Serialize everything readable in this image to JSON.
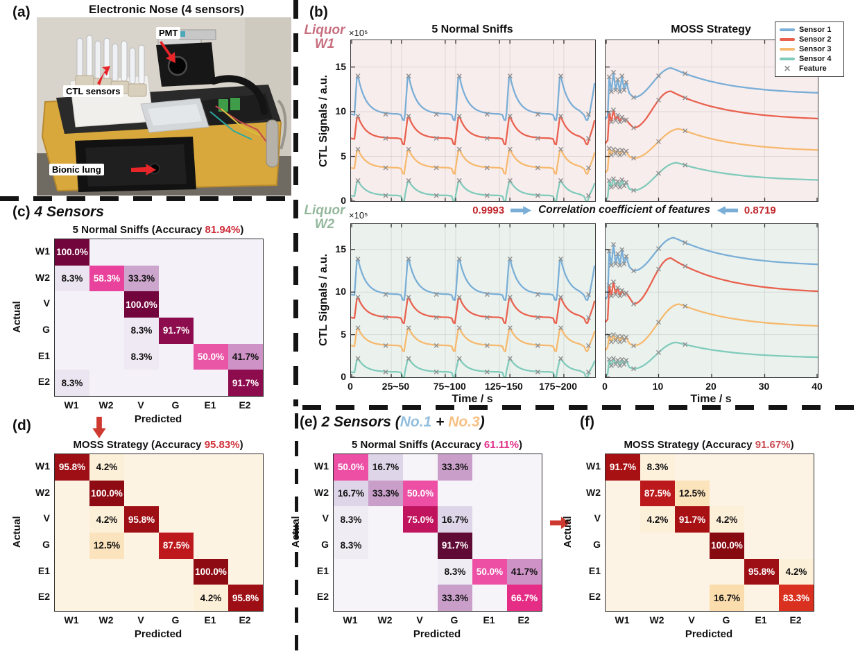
{
  "colors": {
    "sensor1": "#7aaed6",
    "sensor2": "#e9614e",
    "sensor3": "#f6b96e",
    "sensor4": "#80cbbb",
    "feature_marker": "#8f8f8f",
    "w1_bg": "#f8eded",
    "w2_bg": "#ebf2ee",
    "w1_label": "#c76e7e",
    "w2_label": "#95b89d",
    "corr_value": "#c1272d",
    "corr_arrow": "#7aaed6",
    "red_arrow": "#cf3a30",
    "axis": "#3c3c3c"
  },
  "panel_a": {
    "label": "(a)",
    "title": "Electronic Nose (4 sensors)",
    "annotations": {
      "pmt": "PMT",
      "ctl": "CTL sensors",
      "lung": "Bionic lung"
    }
  },
  "panel_b": {
    "label": "(b)",
    "w1_line1": "Liquor",
    "w1_line2": "W1",
    "w2_line1": "Liquor",
    "w2_line2": "W2",
    "y_multiplier": "×10⁵",
    "ylabel": "CTL Signals / a.u.",
    "xlabel": "Time / s",
    "title_left": "5 Normal Sniffs",
    "title_right": "MOSS Strategy",
    "correlation": {
      "left_value": "0.9993",
      "label": "Correlation coefficient of features",
      "right_value": "0.8719"
    }
  },
  "legend": {
    "items": [
      {
        "label": "Sensor 1",
        "color": "#7aaed6",
        "type": "line"
      },
      {
        "label": "Sensor 2",
        "color": "#e9614e",
        "type": "line"
      },
      {
        "label": "Sensor 3",
        "color": "#f6b96e",
        "type": "line"
      },
      {
        "label": "Sensor 4",
        "color": "#80cbbb",
        "type": "line"
      },
      {
        "label": "Feature",
        "color": "#8f8f8f",
        "type": "marker"
      }
    ]
  },
  "headings": {
    "c": {
      "label": "(c)",
      "segments": [
        {
          "t": " 4 Sensors",
          "c": "#111111"
        }
      ]
    },
    "d": {
      "label": "(d)",
      "segments": []
    },
    "e": {
      "label": "(e)",
      "segments": [
        {
          "t": " 2 Sensors (",
          "c": "#111111"
        },
        {
          "t": "No.1",
          "c": "#92bede"
        },
        {
          "t": " + ",
          "c": "#111111"
        },
        {
          "t": "No.3",
          "c": "#f7c083"
        },
        {
          "t": ")",
          "c": "#111111"
        }
      ]
    },
    "f": {
      "label": "(f)",
      "segments": []
    }
  },
  "chart_data": [
    {
      "id": "w1_sniffs",
      "type": "line",
      "kind": "sniff",
      "group": "Liquor W1",
      "title": "5 Normal Sniffs",
      "bg": "#f8eded",
      "ylabel": "CTL Signals / a.u.",
      "yunit": "×10⁵",
      "ylim": [
        0,
        18
      ],
      "yticks": [
        0,
        5,
        10,
        15
      ],
      "n_sniffs": 5,
      "series": [
        {
          "name": "Sensor 1",
          "color": "#7aaed6",
          "baseline": 9.6,
          "peak": 14.0
        },
        {
          "name": "Sensor 2",
          "color": "#e9614e",
          "baseline": 6.9,
          "peak": 9.5
        },
        {
          "name": "Sensor 3",
          "color": "#f6b96e",
          "baseline": 3.6,
          "peak": 5.8
        },
        {
          "name": "Sensor 4",
          "color": "#80cbbb",
          "baseline": 0.5,
          "peak": 2.3
        }
      ]
    },
    {
      "id": "w1_moss",
      "type": "line",
      "kind": "moss",
      "group": "Liquor W1",
      "title": "MOSS Strategy",
      "bg": "#f8eded",
      "ylim": [
        0,
        18
      ],
      "series": [
        {
          "name": "Sensor 1",
          "color": "#7aaed6",
          "baseline": 9.6,
          "spike_peaks": [
            13.9,
            14.4,
            13.6,
            14.0,
            13.3
          ],
          "spike_low": 12.3,
          "dip": 11.6,
          "hump_peak": 14.9,
          "hump_time": 12.5,
          "end": 11.9
        },
        {
          "name": "Sensor 2",
          "color": "#e9614e",
          "baseline": 6.9,
          "spike_peaks": [
            9.9,
            10.2,
            9.6,
            9.4,
            9.1
          ],
          "spike_low": 8.9,
          "dip": 8.2,
          "hump_peak": 12.3,
          "hump_time": 12.3,
          "end": 9.0
        },
        {
          "name": "Sensor 3",
          "color": "#f6b96e",
          "baseline": 3.6,
          "spike_peaks": [
            5.9,
            5.8,
            5.7,
            5.7,
            5.6
          ],
          "spike_low": 5.2,
          "dip": 4.8,
          "hump_peak": 8.1,
          "hump_time": 14.0,
          "end": 5.5
        },
        {
          "name": "Sensor 4",
          "color": "#80cbbb",
          "baseline": 0.5,
          "spike_peaks": [
            2.3,
            2.5,
            2.2,
            2.4,
            2.1
          ],
          "spike_low": 1.6,
          "dip": 1.2,
          "hump_peak": 4.3,
          "hump_time": 13.5,
          "end": 2.2
        }
      ]
    },
    {
      "id": "w2_sniffs",
      "type": "line",
      "kind": "sniff",
      "group": "Liquor W2",
      "bg": "#ebf2ee",
      "ylim": [
        0,
        18
      ],
      "yticks": [
        0,
        5,
        10,
        15
      ],
      "xticks": [
        "0",
        "25~50",
        "75~100",
        "125~150",
        "175~200"
      ],
      "xlabel": "Time / s",
      "n_sniffs": 5,
      "series": [
        {
          "name": "Sensor 1",
          "color": "#7aaed6",
          "baseline": 9.6,
          "peak": 13.9
        },
        {
          "name": "Sensor 2",
          "color": "#e9614e",
          "baseline": 6.9,
          "peak": 9.4
        },
        {
          "name": "Sensor 3",
          "color": "#f6b96e",
          "baseline": 3.6,
          "peak": 5.8
        },
        {
          "name": "Sensor 4",
          "color": "#80cbbb",
          "baseline": 0.5,
          "peak": 2.2
        }
      ]
    },
    {
      "id": "w2_moss",
      "type": "line",
      "kind": "moss",
      "group": "Liquor W2",
      "bg": "#ebf2ee",
      "ylim": [
        0,
        18
      ],
      "xticks": [
        "0",
        "10",
        "20",
        "30",
        "40"
      ],
      "xlabel": "Time / s",
      "series": [
        {
          "name": "Sensor 1",
          "color": "#7aaed6",
          "baseline": 9.6,
          "spike_peaks": [
            14.8,
            15.6,
            14.5,
            15.0,
            14.2
          ],
          "spike_low": 13.2,
          "dip": 12.5,
          "hump_peak": 16.4,
          "hump_time": 13.0,
          "end": 13.0
        },
        {
          "name": "Sensor 2",
          "color": "#e9614e",
          "baseline": 6.9,
          "spike_peaks": [
            10.8,
            11.2,
            10.5,
            10.2,
            9.9
          ],
          "spike_low": 9.6,
          "dip": 8.6,
          "hump_peak": 14.0,
          "hump_time": 12.3,
          "end": 9.8
        },
        {
          "name": "Sensor 3",
          "color": "#f6b96e",
          "baseline": 3.6,
          "spike_peaks": [
            4.9,
            5.0,
            4.8,
            4.8,
            4.7
          ],
          "spike_low": 4.2,
          "dip": 3.7,
          "hump_peak": 8.6,
          "hump_time": 14.0,
          "end": 5.8
        },
        {
          "name": "Sensor 4",
          "color": "#80cbbb",
          "baseline": 0.5,
          "spike_peaks": [
            2.1,
            2.2,
            2.0,
            2.1,
            2.0
          ],
          "spike_low": 1.4,
          "dip": 1.0,
          "hump_peak": 4.1,
          "hump_time": 13.5,
          "end": 2.2
        }
      ]
    },
    {
      "id": "c",
      "type": "heatmap",
      "title_prefix": "5 Normal Sniffs (Accuracy ",
      "accuracy": "81.94%",
      "title_suffix": ")",
      "accuracy_color": "#cc2a36",
      "xlabel": "Predicted",
      "ylabel": "Actual",
      "labels": [
        "W1",
        "W2",
        "V",
        "G",
        "E1",
        "E2"
      ],
      "empty_bg": "#f4f2f8",
      "cells": [
        [
          {
            "t": "100.0%",
            "bg": "#72063c",
            "fg": "#ffffff"
          },
          null,
          null,
          null,
          null,
          null
        ],
        [
          {
            "t": "8.3%",
            "bg": "#eae5f0",
            "fg": "#111111"
          },
          {
            "t": "58.3%",
            "bg": "#e8429c",
            "fg": "#ffffff"
          },
          {
            "t": "33.3%",
            "bg": "#cda6ce",
            "fg": "#111111"
          },
          null,
          null,
          null
        ],
        [
          null,
          null,
          {
            "t": "100.0%",
            "bg": "#72063c",
            "fg": "#ffffff"
          },
          null,
          null,
          null
        ],
        [
          null,
          null,
          {
            "t": "8.3%",
            "bg": "#eee9f3",
            "fg": "#111111"
          },
          {
            "t": "91.7%",
            "bg": "#8d0c4d",
            "fg": "#ffffff"
          },
          null,
          null
        ],
        [
          null,
          null,
          {
            "t": "8.3%",
            "bg": "#eee9f3",
            "fg": "#111111"
          },
          null,
          {
            "t": "50.0%",
            "bg": "#ea56a6",
            "fg": "#ffffff"
          },
          {
            "t": "41.7%",
            "bg": "#cf92c6",
            "fg": "#111111"
          }
        ],
        [
          {
            "t": "8.3%",
            "bg": "#eae5f0",
            "fg": "#111111"
          },
          null,
          null,
          null,
          null,
          {
            "t": "91.7%",
            "bg": "#8d0c4d",
            "fg": "#ffffff"
          }
        ]
      ]
    },
    {
      "id": "d",
      "type": "heatmap",
      "title_prefix": "MOSS Strategy (Accuracy ",
      "accuracy": "95.83%",
      "title_suffix": ")",
      "accuracy_color": "#d03038",
      "xlabel": "Predicted",
      "ylabel": "Actual",
      "labels": [
        "W1",
        "W2",
        "V",
        "G",
        "E1",
        "E2"
      ],
      "empty_bg": "#fdf3e3",
      "cells": [
        [
          {
            "t": "95.8%",
            "bg": "#9d0e15",
            "fg": "#ffffff"
          },
          {
            "t": "4.2%",
            "bg": "#fdf0d8",
            "fg": "#111111"
          },
          null,
          null,
          null,
          null
        ],
        [
          null,
          {
            "t": "100.0%",
            "bg": "#8f0b13",
            "fg": "#ffffff"
          },
          null,
          null,
          null,
          null
        ],
        [
          null,
          {
            "t": "4.2%",
            "bg": "#fdf0d8",
            "fg": "#111111"
          },
          {
            "t": "95.8%",
            "bg": "#9d0e15",
            "fg": "#ffffff"
          },
          null,
          null,
          null
        ],
        [
          null,
          {
            "t": "12.5%",
            "bg": "#fbe4bd",
            "fg": "#111111"
          },
          null,
          {
            "t": "87.5%",
            "bg": "#bd181c",
            "fg": "#ffffff"
          },
          null,
          null
        ],
        [
          null,
          null,
          null,
          null,
          {
            "t": "100.0%",
            "bg": "#8f0b13",
            "fg": "#ffffff"
          },
          null
        ],
        [
          null,
          null,
          null,
          null,
          {
            "t": "4.2%",
            "bg": "#fdf0d8",
            "fg": "#111111"
          },
          {
            "t": "95.8%",
            "bg": "#9d0e15",
            "fg": "#ffffff"
          }
        ]
      ]
    },
    {
      "id": "e",
      "type": "heatmap",
      "title_prefix": "5 Normal Sniffs (Accuracy ",
      "accuracy": "61.11%",
      "title_suffix": ")",
      "accuracy_color": "#e2318a",
      "xlabel": "Predicted",
      "ylabel": "Actual",
      "labels": [
        "W1",
        "W2",
        "V",
        "G",
        "E1",
        "E2"
      ],
      "empty_bg": "#f6f4f9",
      "cells": [
        [
          {
            "t": "50.0%",
            "bg": "#ec4fa4",
            "fg": "#ffffff"
          },
          {
            "t": "16.7%",
            "bg": "#ded5e9",
            "fg": "#111111"
          },
          null,
          {
            "t": "33.3%",
            "bg": "#c99fca",
            "fg": "#111111"
          },
          null,
          null
        ],
        [
          {
            "t": "16.7%",
            "bg": "#ded5e9",
            "fg": "#111111"
          },
          {
            "t": "33.3%",
            "bg": "#c99fca",
            "fg": "#111111"
          },
          {
            "t": "50.0%",
            "bg": "#ec4fa4",
            "fg": "#ffffff"
          },
          null,
          null,
          null
        ],
        [
          {
            "t": "8.3%",
            "bg": "#efecf4",
            "fg": "#111111"
          },
          null,
          {
            "t": "75.0%",
            "bg": "#c0145e",
            "fg": "#ffffff"
          },
          {
            "t": "16.7%",
            "bg": "#ded5e9",
            "fg": "#111111"
          },
          null,
          null
        ],
        [
          {
            "t": "8.3%",
            "bg": "#efecf4",
            "fg": "#111111"
          },
          null,
          null,
          {
            "t": "91.7%",
            "bg": "#600b35",
            "fg": "#ffffff"
          },
          null,
          null
        ],
        [
          null,
          null,
          null,
          {
            "t": "8.3%",
            "bg": "#efecf4",
            "fg": "#111111"
          },
          {
            "t": "50.0%",
            "bg": "#ec4fa4",
            "fg": "#ffffff"
          },
          {
            "t": "41.7%",
            "bg": "#cf92c6",
            "fg": "#111111"
          }
        ],
        [
          null,
          null,
          null,
          {
            "t": "33.3%",
            "bg": "#c99fca",
            "fg": "#111111"
          },
          null,
          {
            "t": "66.7%",
            "bg": "#e52d86",
            "fg": "#ffffff"
          }
        ]
      ]
    },
    {
      "id": "f",
      "type": "heatmap",
      "title_prefix": "MOSS Strategy (Accuracy ",
      "accuracy": "91.67%",
      "title_suffix": ")",
      "accuracy_color": "#ca4b52",
      "xlabel": "Predicted",
      "ylabel": "Actual",
      "labels": [
        "W1",
        "W2",
        "V",
        "G",
        "E1",
        "E2"
      ],
      "empty_bg": "#fdf3e4",
      "cells": [
        [
          {
            "t": "91.7%",
            "bg": "#a81114",
            "fg": "#ffffff"
          },
          {
            "t": "8.3%",
            "bg": "#fdf1dc",
            "fg": "#111111"
          },
          null,
          null,
          null,
          null
        ],
        [
          null,
          {
            "t": "87.5%",
            "bg": "#bb191b",
            "fg": "#ffffff"
          },
          {
            "t": "12.5%",
            "bg": "#fbe3bb",
            "fg": "#111111"
          },
          null,
          null,
          null
        ],
        [
          null,
          {
            "t": "4.2%",
            "bg": "#fdf0d9",
            "fg": "#111111"
          },
          {
            "t": "91.7%",
            "bg": "#a81114",
            "fg": "#ffffff"
          },
          {
            "t": "4.2%",
            "bg": "#fdf0d9",
            "fg": "#111111"
          },
          null,
          null
        ],
        [
          null,
          null,
          null,
          {
            "t": "100.0%",
            "bg": "#860a10",
            "fg": "#ffffff"
          },
          null,
          null
        ],
        [
          null,
          null,
          null,
          null,
          {
            "t": "95.8%",
            "bg": "#9d0e15",
            "fg": "#ffffff"
          },
          {
            "t": "4.2%",
            "bg": "#fdf0d9",
            "fg": "#111111"
          }
        ],
        [
          null,
          null,
          null,
          {
            "t": "16.7%",
            "bg": "#fadcad",
            "fg": "#111111"
          },
          null,
          {
            "t": "83.3%",
            "bg": "#d9301f",
            "fg": "#ffffff"
          }
        ]
      ]
    }
  ]
}
